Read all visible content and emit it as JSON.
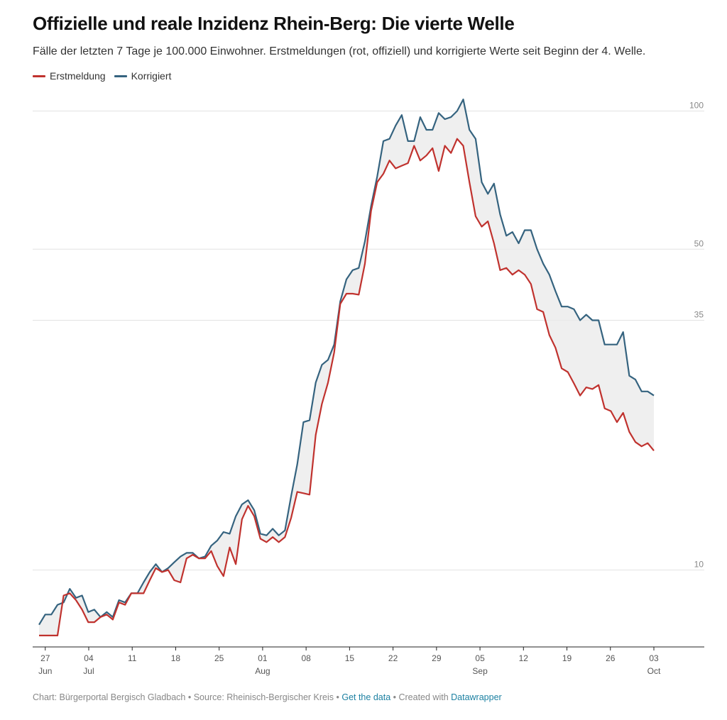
{
  "title": "Offizielle und reale Inzidenz Rhein-Berg: Die vierte Welle",
  "subtitle": "Fälle der letzten 7 Tage je 100.000 Einwohner. Erstmeldungen (rot, offiziell) und korrigierte Werte seit Beginn der 4. Welle.",
  "legend": [
    {
      "label": "Erstmeldung",
      "color": "#c0322e"
    },
    {
      "label": "Korrigiert",
      "color": "#35637f"
    }
  ],
  "footer": {
    "prefix": "Chart: Bürgerportal Bergisch Gladbach • Source: Rheinisch-Bergischer Kreis • ",
    "get_data": "Get the data",
    "middle": " • Created with ",
    "datawrapper": "Datawrapper"
  },
  "chart_data": {
    "type": "line",
    "y_scale": "log",
    "ylim": [
      6.8,
      118
    ],
    "y_ticks": [
      10,
      35,
      50,
      100
    ],
    "x_ticks": [
      {
        "day": "27",
        "month": "Jun"
      },
      {
        "day": "04",
        "month": "Jul"
      },
      {
        "day": "11",
        "month": ""
      },
      {
        "day": "18",
        "month": ""
      },
      {
        "day": "25",
        "month": ""
      },
      {
        "day": "01",
        "month": "Aug"
      },
      {
        "day": "08",
        "month": ""
      },
      {
        "day": "15",
        "month": ""
      },
      {
        "day": "22",
        "month": ""
      },
      {
        "day": "29",
        "month": ""
      },
      {
        "day": "05",
        "month": "Sep"
      },
      {
        "day": "12",
        "month": ""
      },
      {
        "day": "19",
        "month": ""
      },
      {
        "day": "26",
        "month": ""
      },
      {
        "day": "03",
        "month": "Oct"
      }
    ],
    "x_start": "2021-06-26",
    "x_end": "2021-10-03",
    "fill_between": true,
    "series": [
      {
        "name": "Erstmeldung",
        "color": "#c0322e",
        "values": [
          7.2,
          7.2,
          7.2,
          7.2,
          8.8,
          8.9,
          8.6,
          8.2,
          7.7,
          7.7,
          7.9,
          8.0,
          7.8,
          8.5,
          8.4,
          8.9,
          8.9,
          8.9,
          9.5,
          10.1,
          9.9,
          10.0,
          9.5,
          9.4,
          10.6,
          10.8,
          10.6,
          10.6,
          11.0,
          10.2,
          9.7,
          11.2,
          10.3,
          12.9,
          13.8,
          13.1,
          11.7,
          11.5,
          11.8,
          11.5,
          11.8,
          13.0,
          14.8,
          14.7,
          14.6,
          19.7,
          23.0,
          25.6,
          29.8,
          38.0,
          40.0,
          40.0,
          39.8,
          46.5,
          60.5,
          70.0,
          73.0,
          78.0,
          75.0,
          76.0,
          77.0,
          84.0,
          78.0,
          80.0,
          83.0,
          74.0,
          84.0,
          81.0,
          87.0,
          84.0,
          70.0,
          59.0,
          56.0,
          57.5,
          51.5,
          45.0,
          45.5,
          44.0,
          45.0,
          44.0,
          42.0,
          37.0,
          36.5,
          32.5,
          30.5,
          27.5,
          27.0,
          25.5,
          24.0,
          25.0,
          24.8,
          25.3,
          22.5,
          22.2,
          21.0,
          22.0,
          20.0,
          19.0,
          18.6,
          18.9,
          18.2
        ]
      },
      {
        "name": "Korrigiert",
        "color": "#35637f",
        "values": [
          7.6,
          8.0,
          8.0,
          8.4,
          8.5,
          9.1,
          8.7,
          8.8,
          8.1,
          8.2,
          7.9,
          8.1,
          7.9,
          8.6,
          8.5,
          8.9,
          8.9,
          9.4,
          9.9,
          10.3,
          9.9,
          10.1,
          10.4,
          10.7,
          10.9,
          10.9,
          10.6,
          10.7,
          11.3,
          11.6,
          12.1,
          12.0,
          13.1,
          13.9,
          14.2,
          13.5,
          12.0,
          11.9,
          12.3,
          11.9,
          12.2,
          14.5,
          17.0,
          21.0,
          21.2,
          25.6,
          28.0,
          28.7,
          31.0,
          38.5,
          43.0,
          45.0,
          45.5,
          52.0,
          62.0,
          72.0,
          86.0,
          87.0,
          93.0,
          98.0,
          86.0,
          86.0,
          97.0,
          91.0,
          91.0,
          99.0,
          96.0,
          97.0,
          100.0,
          106.0,
          91.0,
          87.0,
          70.0,
          66.0,
          69.5,
          59.5,
          53.5,
          54.5,
          51.5,
          55.0,
          55.0,
          50.0,
          46.5,
          44.0,
          40.5,
          37.5,
          37.5,
          37.0,
          35.0,
          36.0,
          35.0,
          35.0,
          31.0,
          31.0,
          31.0,
          33.0,
          26.5,
          26.0,
          24.5,
          24.5,
          24.0
        ]
      }
    ]
  }
}
